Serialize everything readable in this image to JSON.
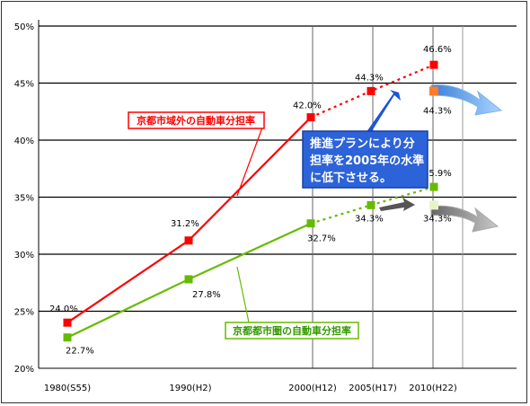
{
  "chart_data": {
    "type": "line",
    "x": [
      "1980(S55)",
      "1990(H2)",
      "2000(H12)",
      "2005(H17)",
      "2010(H22)"
    ],
    "ylim": [
      20,
      50
    ],
    "y_ticks": [
      "20%",
      "25%",
      "30%",
      "35%",
      "40%",
      "45%",
      "50%"
    ],
    "series": [
      {
        "name": "京都市域外の自動車分担率",
        "color": "#ff0000",
        "points": [
          {
            "x": "1980(S55)",
            "y": 24.0,
            "label": "24.0%"
          },
          {
            "x": "1990(H2)",
            "y": 31.2,
            "label": "31.2%"
          },
          {
            "x": "2000(H12)",
            "y": 42.0,
            "label": "42.0%"
          },
          {
            "x": "2005(H17)",
            "y": 44.3,
            "label": "44.3%"
          },
          {
            "x": "2010(H22)",
            "y": 46.6,
            "label": "46.6%"
          }
        ],
        "target": {
          "x": "2010(H22)",
          "y": 44.3,
          "label": "44.3%"
        }
      },
      {
        "name": "京都都市圏の自動車分担率",
        "color": "#66bb00",
        "points": [
          {
            "x": "1980(S55)",
            "y": 22.7,
            "label": "22.7%"
          },
          {
            "x": "1990(H2)",
            "y": 27.8,
            "label": "27.8%"
          },
          {
            "x": "2000(H12)",
            "y": 32.7,
            "label": "32.7%"
          },
          {
            "x": "2005(H17)",
            "y": 34.3,
            "label": "34.3%"
          },
          {
            "x": "2010(H22)",
            "y": 35.9,
            "label": "35.9%"
          }
        ],
        "target": {
          "x": "2010(H22)",
          "y": 34.3,
          "label": "34.3%"
        }
      }
    ],
    "annotations": {
      "red_series_label": "京都市域外の自動車分担率",
      "green_series_label": "京都都市圏の自動車分担率",
      "note_line1": "推進プランにより分",
      "note_line2": "担率を2005年の水準",
      "note_line3": "に低下させる。"
    },
    "grid": true
  }
}
